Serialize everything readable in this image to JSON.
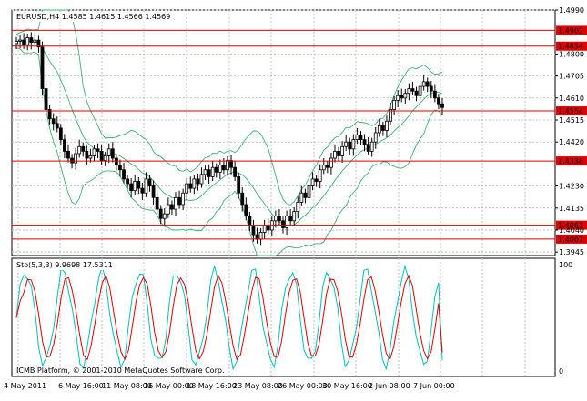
{
  "header": {
    "symbol_line": "EURUSD,H4  1.4585  1.4615  1.4566  1.4569",
    "indicator_line": "Sto(5,3,3) 9.9698 17.5311",
    "copyright": "ICMB Platform, © 2001-2010 MetaQuotes Software Corp."
  },
  "colors": {
    "background": "#ffffff",
    "grid": "#c0c0c0",
    "candle": "#000000",
    "bollinger": "#3cb371",
    "level_line": "#e00000",
    "level_label_bg": "#e00000",
    "stoch_main": "#00bfbf",
    "stoch_signal": "#e00000"
  },
  "chart_data": {
    "type": "candlestick",
    "symbol": "EURUSD",
    "timeframe": "H4",
    "ohlc_last": {
      "open": 1.4585,
      "high": 1.4615,
      "low": 1.4566,
      "close": 1.4569
    },
    "price_axis": {
      "ticks": [
        "1.4990",
        "1.4800",
        "1.4705",
        "1.4610",
        "1.4515",
        "1.4420",
        "1.4230",
        "1.4135",
        "1.4040",
        "1.3945"
      ],
      "ylim": [
        1.393,
        1.499
      ]
    },
    "time_axis": {
      "ticks": [
        "4 May 2011",
        "6 May 16:00",
        "11 May 08:00",
        "16 May 00:00",
        "18 May 16:00",
        "23 May 08:00",
        "26 May 00:00",
        "30 May 16:00",
        "2 Jun 08:00",
        "7 Jun 00:00"
      ]
    },
    "levels": [
      {
        "value": "1.4902"
      },
      {
        "value": "1.4834"
      },
      {
        "value": "1.4554"
      },
      {
        "value": "1.4338"
      },
      {
        "value": "1.4061"
      },
      {
        "value": "1.4001"
      }
    ],
    "close_series": [
      1.4855,
      1.486,
      1.484,
      1.487,
      1.485,
      1.486,
      1.483,
      1.465,
      1.456,
      1.452,
      1.45,
      1.448,
      1.443,
      1.438,
      1.435,
      1.433,
      1.437,
      1.44,
      1.438,
      1.435,
      1.436,
      1.439,
      1.438,
      1.434,
      1.436,
      1.439,
      1.435,
      1.432,
      1.43,
      1.426,
      1.424,
      1.421,
      1.425,
      1.422,
      1.42,
      1.426,
      1.423,
      1.418,
      1.413,
      1.409,
      1.411,
      1.415,
      1.413,
      1.418,
      1.415,
      1.42,
      1.424,
      1.422,
      1.426,
      1.424,
      1.428,
      1.43,
      1.427,
      1.431,
      1.429,
      1.432,
      1.43,
      1.434,
      1.431,
      1.427,
      1.42,
      1.415,
      1.41,
      1.406,
      1.402,
      1.4,
      1.403,
      1.406,
      1.404,
      1.408,
      1.41,
      1.408,
      1.405,
      1.41,
      1.408,
      1.412,
      1.416,
      1.42,
      1.418,
      1.423,
      1.426,
      1.425,
      1.43,
      1.432,
      1.431,
      1.435,
      1.438,
      1.436,
      1.44,
      1.442,
      1.439,
      1.443,
      1.445,
      1.443,
      1.441,
      1.438,
      1.442,
      1.446,
      1.449,
      1.447,
      1.451,
      1.456,
      1.46,
      1.462,
      1.461,
      1.463,
      1.465,
      1.464,
      1.462,
      1.466,
      1.468,
      1.466,
      1.464,
      1.461,
      1.4585,
      1.4569
    ],
    "stochastic": {
      "name": "Sto(5,3,3)",
      "main": 9.9698,
      "signal": 17.5311,
      "ylim": [
        0,
        100
      ],
      "ticks": [
        "100",
        "0"
      ]
    }
  }
}
